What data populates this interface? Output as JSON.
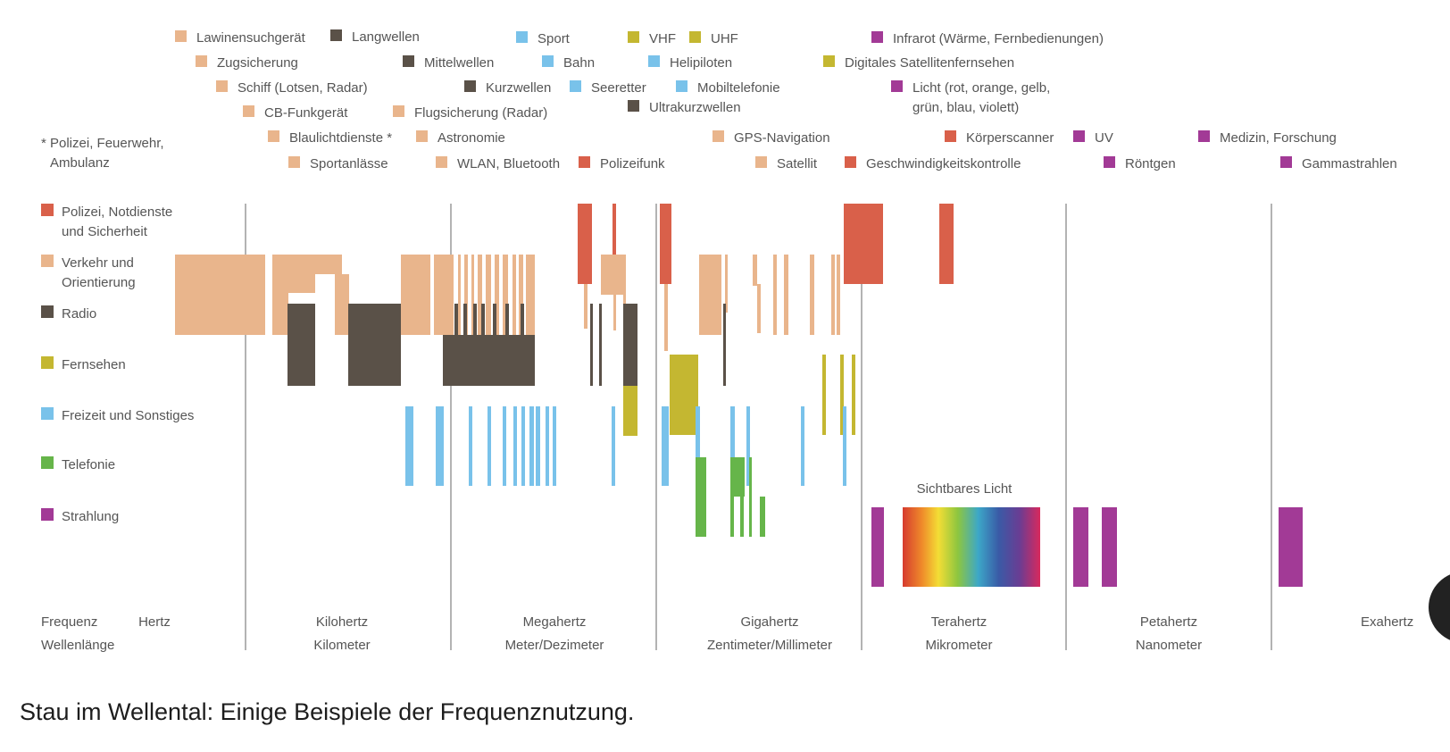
{
  "colors": {
    "sicherheit": "#d9604a",
    "verkehr": "#e9b58c",
    "radio": "#5a5148",
    "fernsehen": "#c4b731",
    "freizeit": "#79c2ea",
    "telefonie": "#66b54a",
    "strahlung": "#a23a96",
    "text": "#555555",
    "divider": "#9a9a9a"
  },
  "legend": [
    {
      "label": "Lawinensuchgerät",
      "cat": "verkehr"
    },
    {
      "label": "Langwellen",
      "cat": "radio"
    },
    {
      "label": "Sport",
      "cat": "freizeit"
    },
    {
      "label": "VHF",
      "cat": "fernsehen"
    },
    {
      "label": "UHF",
      "cat": "fernsehen"
    },
    {
      "label": "Infrarot (Wärme, Fernbedienungen)",
      "cat": "strahlung"
    },
    {
      "label": "Zugsicherung",
      "cat": "verkehr"
    },
    {
      "label": "Mittelwellen",
      "cat": "radio"
    },
    {
      "label": "Bahn",
      "cat": "freizeit"
    },
    {
      "label": "Helipiloten",
      "cat": "freizeit"
    },
    {
      "label": "Digitales Satellitenfernsehen",
      "cat": "fernsehen"
    },
    {
      "label": "Schiff (Lotsen, Radar)",
      "cat": "verkehr"
    },
    {
      "label": "Kurzwellen",
      "cat": "radio"
    },
    {
      "label": "Seeretter",
      "cat": "freizeit"
    },
    {
      "label": "Mobiltelefonie",
      "cat": "freizeit"
    },
    {
      "label": "Licht (rot, orange, gelb,",
      "label2": "grün, blau, violett)",
      "cat": "strahlung"
    },
    {
      "label": "CB-Funkgerät",
      "cat": "verkehr"
    },
    {
      "label": "Flugsicherung (Radar)",
      "cat": "verkehr"
    },
    {
      "label": "Ultrakurzwellen",
      "cat": "radio"
    },
    {
      "label": "Blaulichtdienste *",
      "cat": "verkehr"
    },
    {
      "label": "Astronomie",
      "cat": "verkehr"
    },
    {
      "label": "GPS-Navigation",
      "cat": "verkehr"
    },
    {
      "label": "Körperscanner",
      "cat": "sicherheit"
    },
    {
      "label": "UV",
      "cat": "strahlung"
    },
    {
      "label": "Medizin, Forschung",
      "cat": "strahlung"
    },
    {
      "label": "Sportanlässe",
      "cat": "verkehr"
    },
    {
      "label": "WLAN, Bluetooth",
      "cat": "verkehr"
    },
    {
      "label": "Polizeifunk",
      "cat": "sicherheit"
    },
    {
      "label": "Satellit",
      "cat": "verkehr"
    },
    {
      "label": "Geschwindigkeitskontrolle",
      "cat": "sicherheit"
    },
    {
      "label": "Röntgen",
      "cat": "strahlung"
    },
    {
      "label": "Gammastrahlen",
      "cat": "strahlung"
    }
  ],
  "footnote": [
    "* Polizei, Feuerwehr,",
    "Ambulanz"
  ],
  "categories": [
    {
      "key": "sicherheit",
      "label": "Polizei, Notdienste",
      "label2": "und Sicherheit"
    },
    {
      "key": "verkehr",
      "label": "Verkehr und",
      "label2": "Orientierung"
    },
    {
      "key": "radio",
      "label": "Radio"
    },
    {
      "key": "fernsehen",
      "label": "Fernsehen"
    },
    {
      "key": "freizeit",
      "label": "Freizeit und Sonstiges"
    },
    {
      "key": "telefonie",
      "label": "Telefonie"
    },
    {
      "key": "strahlung",
      "label": "Strahlung"
    }
  ],
  "axis": {
    "row_labels": [
      "Frequenz",
      "Wellenlänge"
    ],
    "units": [
      {
        "freq": "Hertz",
        "wave": ""
      },
      {
        "freq": "Kilohertz",
        "wave": "Kilometer"
      },
      {
        "freq": "Megahertz",
        "wave": "Meter/Dezimeter"
      },
      {
        "freq": "Gigahertz",
        "wave": "Zentimeter/Millimeter"
      },
      {
        "freq": "Terahertz",
        "wave": "Mikrometer"
      },
      {
        "freq": "Petahertz",
        "wave": "Nanometer"
      },
      {
        "freq": "Exahertz",
        "wave": ""
      }
    ]
  },
  "visible_light_label": "Sichtbares Licht",
  "caption": "Stau im Wellental: Einige Beispiele der Frequenznutzung."
}
